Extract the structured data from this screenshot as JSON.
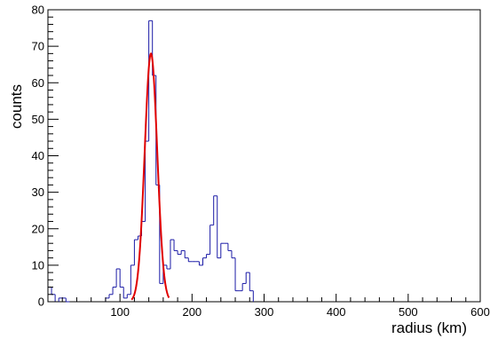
{
  "chart_data": {
    "type": "histogram",
    "xlabel": "radius (km)",
    "ylabel": "counts",
    "xlim": [
      0,
      600
    ],
    "ylim": [
      0,
      80
    ],
    "x_ticks": [
      100,
      200,
      300,
      400,
      500,
      600
    ],
    "y_ticks": [
      0,
      10,
      20,
      30,
      40,
      50,
      60,
      70,
      80
    ],
    "grid": false,
    "colors": {
      "histogram": "#1a1aa6",
      "fit": "#e00000"
    },
    "bin_width": 5,
    "bins": [
      [
        0,
        4
      ],
      [
        5,
        2
      ],
      [
        10,
        0
      ],
      [
        15,
        1
      ],
      [
        20,
        1
      ],
      [
        25,
        0
      ],
      [
        80,
        1
      ],
      [
        85,
        2
      ],
      [
        90,
        4
      ],
      [
        95,
        9
      ],
      [
        100,
        4
      ],
      [
        105,
        1
      ],
      [
        110,
        2
      ],
      [
        115,
        10
      ],
      [
        120,
        17
      ],
      [
        125,
        18
      ],
      [
        130,
        22
      ],
      [
        135,
        44
      ],
      [
        140,
        77
      ],
      [
        145,
        62
      ],
      [
        150,
        32
      ],
      [
        155,
        5
      ],
      [
        160,
        10
      ],
      [
        165,
        9
      ],
      [
        170,
        17
      ],
      [
        175,
        14
      ],
      [
        180,
        13
      ],
      [
        185,
        14
      ],
      [
        190,
        12
      ],
      [
        195,
        11
      ],
      [
        200,
        11
      ],
      [
        205,
        11
      ],
      [
        210,
        10
      ],
      [
        215,
        12
      ],
      [
        220,
        13
      ],
      [
        225,
        21
      ],
      [
        230,
        29
      ],
      [
        235,
        12
      ],
      [
        240,
        16
      ],
      [
        245,
        16
      ],
      [
        250,
        14
      ],
      [
        255,
        12
      ],
      [
        260,
        3
      ],
      [
        265,
        3
      ],
      [
        270,
        5
      ],
      [
        275,
        8
      ],
      [
        280,
        3
      ]
    ],
    "fit": {
      "model": "gaussian",
      "amplitude": 68,
      "mean": 143,
      "sigma": 8.7,
      "x_range": [
        116,
        168
      ]
    }
  }
}
